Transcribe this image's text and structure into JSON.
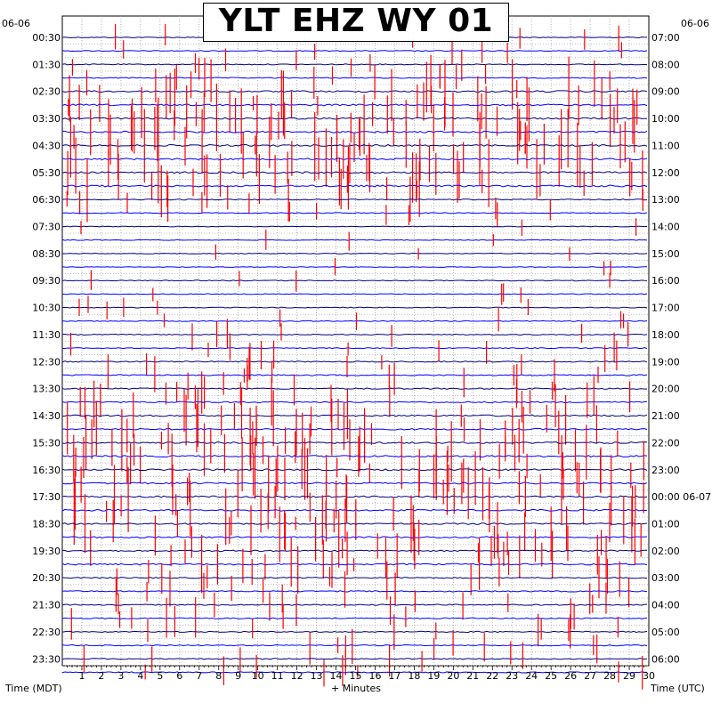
{
  "chart_data": {
    "type": "line",
    "title": "YLT EHZ WY 01",
    "left_date": "06-06",
    "right_date": "06-06",
    "xlabel": "+ Minutes",
    "left_axis_label": "Time (MDT)",
    "right_axis_label": "Time (UTC)",
    "x_ticks": [
      "1",
      "2",
      "3",
      "4",
      "5",
      "6",
      "7",
      "8",
      "9",
      "10",
      "11",
      "12",
      "13",
      "14",
      "15",
      "16",
      "17",
      "18",
      "19",
      "20",
      "21",
      "22",
      "23",
      "24",
      "25",
      "26",
      "27",
      "28",
      "29",
      "30"
    ],
    "xlim": [
      0,
      30
    ],
    "left_ticks": [
      "00:30",
      "01:30",
      "02:30",
      "03:30",
      "04:30",
      "05:30",
      "06:30",
      "07:30",
      "08:30",
      "09:30",
      "10:30",
      "11:30",
      "12:30",
      "13:30",
      "14:30",
      "15:30",
      "16:30",
      "17:30",
      "18:30",
      "19:30",
      "20:30",
      "21:30",
      "22:30",
      "23:30"
    ],
    "right_ticks": [
      "07:00",
      "08:00",
      "09:00",
      "10:00",
      "11:00",
      "12:00",
      "13:00",
      "14:00",
      "15:00",
      "16:00",
      "17:00",
      "18:00",
      "19:00",
      "20:00",
      "21:00",
      "22:00",
      "23:00",
      "00:00 06-07",
      "01:00",
      "02:00",
      "03:00",
      "04:00",
      "05:00",
      "06:00"
    ],
    "traces_per_hour": 2,
    "trace_count": 48,
    "trace_colors": [
      "#000080",
      "#0000ff"
    ],
    "event_color": "#ff0000",
    "grid": true,
    "grid_color": "#9a9a9a",
    "activity_by_hour": [
      0.25,
      0.35,
      0.9,
      0.9,
      0.9,
      0.9,
      0.3,
      0.15,
      0.12,
      0.2,
      0.25,
      0.3,
      0.45,
      0.6,
      0.75,
      0.85,
      0.85,
      0.85,
      0.75,
      0.7,
      0.5,
      0.45,
      0.4,
      0.35
    ]
  }
}
